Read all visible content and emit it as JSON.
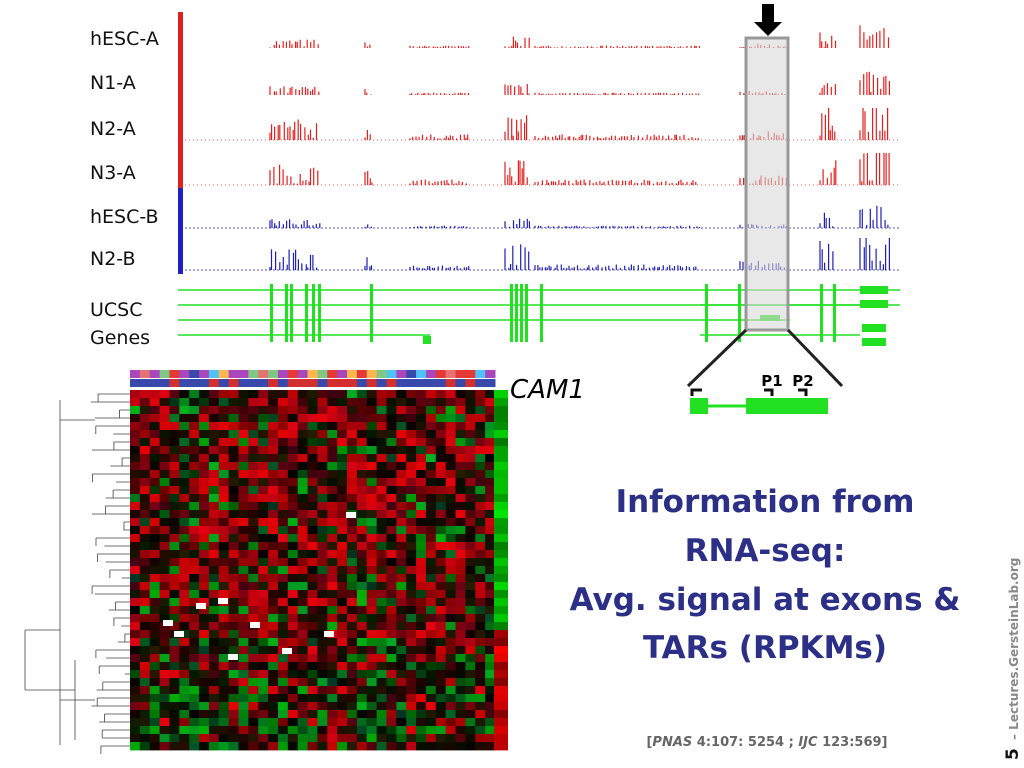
{
  "tracks": {
    "labels": [
      "hESC-A",
      "N1-A",
      "N2-A",
      "N3-A",
      "hESC-B",
      "N2-B"
    ],
    "genes_label": [
      "UCSC",
      "Genes"
    ]
  },
  "heatmap": {
    "gene": "CAM1"
  },
  "zoom": {
    "promoters": [
      "P1",
      "P2"
    ]
  },
  "text": {
    "lines": [
      "Information from",
      "RNA-seq:",
      "Avg. signal at exons &",
      "TARs (RPKMs)"
    ]
  },
  "citation": [
    "[",
    "PNAS",
    " 4:107: 5254 ; ",
    "IJC",
    " 123:569]"
  ],
  "footer": {
    "page": "5",
    "site": "Lectures.GersteinLab.org"
  }
}
